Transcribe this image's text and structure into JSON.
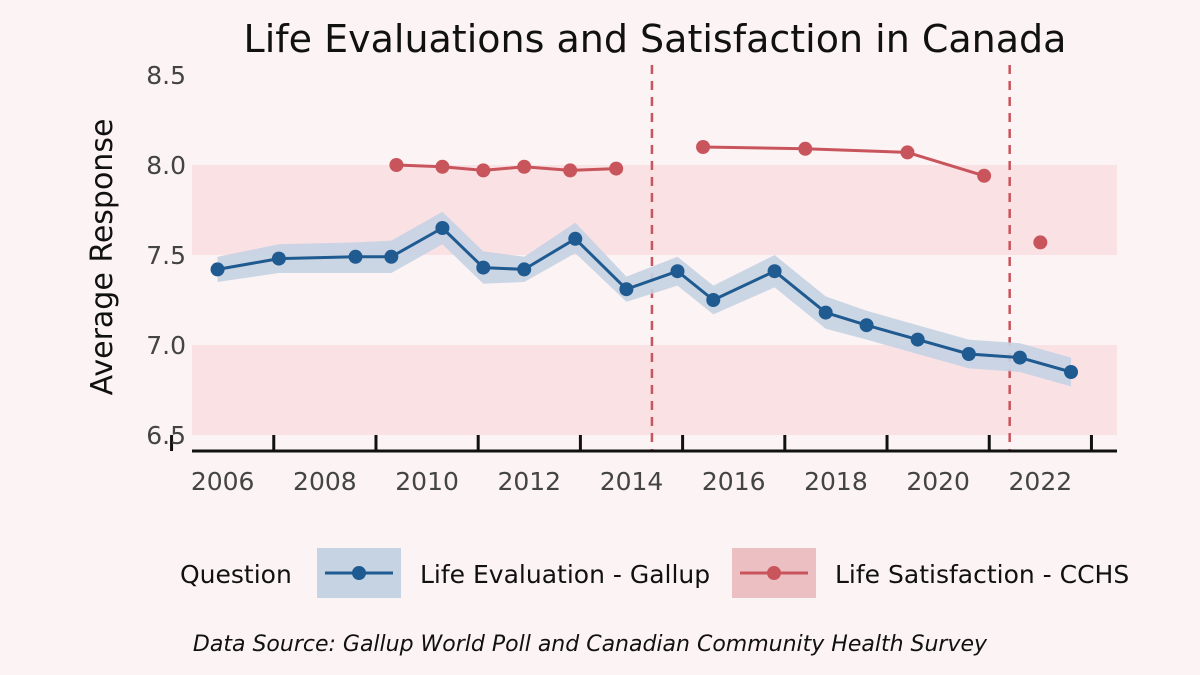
{
  "chart_data": {
    "type": "line",
    "title": "Life Evaluations and Satisfaction in Canada",
    "xlabel": "",
    "ylabel": "Average Response",
    "xlim": [
      2005.4,
      2023.5
    ],
    "ylim": [
      6.5,
      8.5
    ],
    "x_ticks": [
      2006,
      2008,
      2010,
      2012,
      2014,
      2016,
      2018,
      2020,
      2022
    ],
    "y_ticks": [
      6.5,
      7.0,
      7.5,
      8.0,
      8.5
    ],
    "y_tick_labels": [
      "6.5",
      "7.0",
      "7.5",
      "8.0",
      "8.5"
    ],
    "shaded_bands": [
      [
        6.5,
        7.0
      ],
      [
        7.5,
        8.0
      ]
    ],
    "vertical_reference_lines": [
      2014.4,
      2021.4
    ],
    "series": [
      {
        "name": "Life Evaluation - Gallup",
        "color": "#1f5a91",
        "band_color": "#c5d3e3",
        "x": [
          2005.9,
          2007.1,
          2008.6,
          2009.3,
          2010.3,
          2011.1,
          2011.9,
          2012.9,
          2013.9,
          2014.9,
          2015.6,
          2016.8,
          2017.8,
          2018.6,
          2019.6,
          2020.6,
          2021.6,
          2022.6
        ],
        "values": [
          7.42,
          7.48,
          7.49,
          7.49,
          7.65,
          7.43,
          7.42,
          7.59,
          7.31,
          7.41,
          7.25,
          7.41,
          7.18,
          7.11,
          7.03,
          6.95,
          6.93,
          6.85
        ],
        "lower": [
          7.35,
          7.4,
          7.4,
          7.4,
          7.56,
          7.34,
          7.35,
          7.51,
          7.24,
          7.33,
          7.17,
          7.32,
          7.09,
          7.03,
          6.95,
          6.87,
          6.85,
          6.77
        ],
        "upper": [
          7.49,
          7.56,
          7.57,
          7.58,
          7.74,
          7.52,
          7.49,
          7.68,
          7.38,
          7.49,
          7.33,
          7.5,
          7.27,
          7.19,
          7.11,
          7.03,
          7.01,
          6.93
        ]
      },
      {
        "name": "Life Satisfaction - CCHS",
        "color": "#c9555c",
        "band_color": "#ecc0c3",
        "segments": [
          {
            "x": [
              2009.4,
              2010.3,
              2011.1,
              2011.9,
              2012.8,
              2013.7
            ],
            "values": [
              8.0,
              7.99,
              7.97,
              7.99,
              7.97,
              7.98
            ]
          },
          {
            "x": [
              2015.4,
              2017.4,
              2019.4,
              2020.9
            ],
            "values": [
              8.1,
              8.09,
              8.07,
              7.94
            ]
          },
          {
            "x": [
              2022.0
            ],
            "values": [
              7.57
            ]
          }
        ]
      }
    ],
    "legend": {
      "title": "Question",
      "position": "bottom",
      "items": [
        "Life Evaluation - Gallup",
        "Life Satisfaction - CCHS"
      ]
    },
    "source_note": "Data Source: Gallup World Poll and Canadian Community Health Survey"
  }
}
